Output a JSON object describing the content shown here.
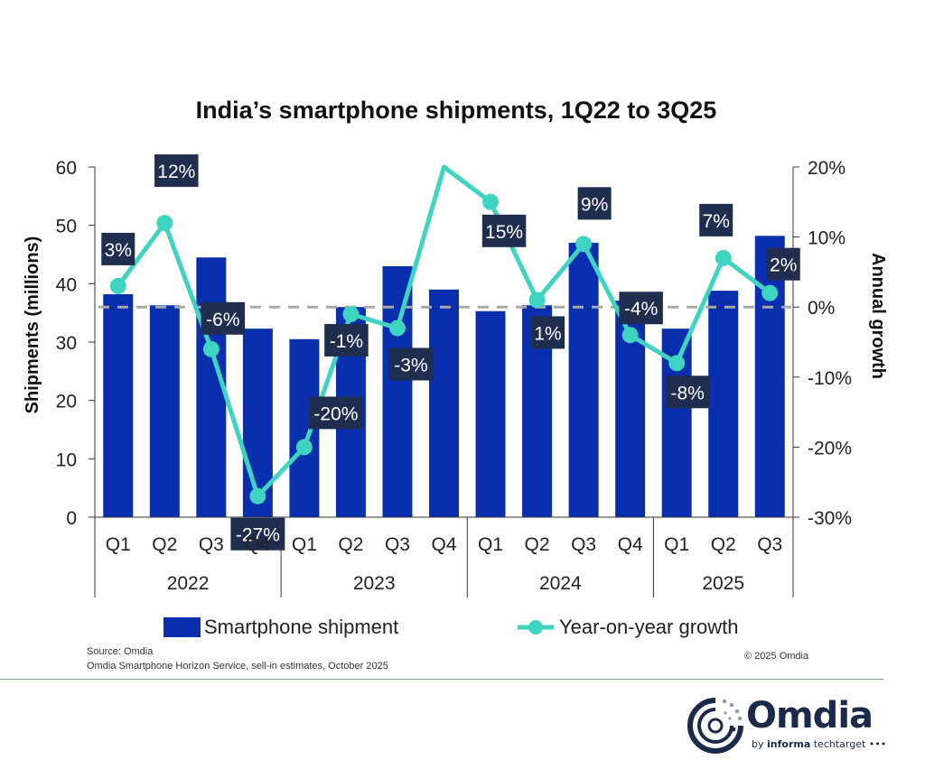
{
  "chart_data": {
    "type": "bar",
    "title": "India’s smartphone shipments, 1Q22 to 3Q25",
    "ylabel": "Shipments (millions)",
    "y2label": "Annual growth",
    "ylim": [
      0,
      60
    ],
    "y2lim": [
      -30,
      20
    ],
    "yticks": [
      "0",
      "10",
      "20",
      "30",
      "40",
      "50",
      "60"
    ],
    "y2ticks": [
      "-30%",
      "-20%",
      "-10%",
      "0%",
      "10%",
      "20%"
    ],
    "categories": [
      "Q1",
      "Q2",
      "Q3",
      "Q4",
      "Q1",
      "Q2",
      "Q3",
      "Q4",
      "Q1",
      "Q2",
      "Q3",
      "Q4",
      "Q1",
      "Q2",
      "Q3"
    ],
    "groups": [
      {
        "label": "2022",
        "count": 4
      },
      {
        "label": "2023",
        "count": 4
      },
      {
        "label": "2024",
        "count": 4
      },
      {
        "label": "2025",
        "count": 3
      }
    ],
    "series": [
      {
        "name": "Smartphone shipment",
        "type": "bar",
        "axis": "left",
        "color": "#0a2fae",
        "values": [
          38.2,
          36.3,
          44.5,
          32.3,
          30.5,
          36.0,
          43.0,
          39.0,
          35.3,
          36.3,
          47.0,
          37.1,
          32.3,
          38.8,
          48.2
        ]
      },
      {
        "name": "Year-on-year growth",
        "type": "line",
        "axis": "right",
        "color": "#3fd3c2",
        "values": [
          3,
          12,
          -6,
          -27,
          -20,
          -1,
          -3,
          26,
          15,
          1,
          9,
          -4,
          -8,
          7,
          2
        ],
        "labels": [
          "3%",
          "12%",
          "-6%",
          "-27%",
          "-20%",
          "-1%",
          "-3%",
          "",
          "15%",
          "1%",
          "9%",
          "-4%",
          "-8%",
          "7%",
          "2%"
        ]
      }
    ],
    "zero_line": {
      "axis": "right",
      "value": 0,
      "style": "dashed",
      "color": "#a8a8a8"
    },
    "legend": {
      "position": "bottom",
      "items": [
        "Smartphone shipment",
        "Year-on-year growth"
      ]
    },
    "grid": false
  },
  "footer": {
    "source": "Source: Omdia",
    "note": "Omdia Smartphone Horizon Service, sell-in estimates, October 2025",
    "copyright": "© 2025 Omdia"
  },
  "logo": {
    "name": "Omdia",
    "sub_prefix": "by ",
    "sub_bold": "informa",
    "sub_suffix": " techtarget •••"
  }
}
